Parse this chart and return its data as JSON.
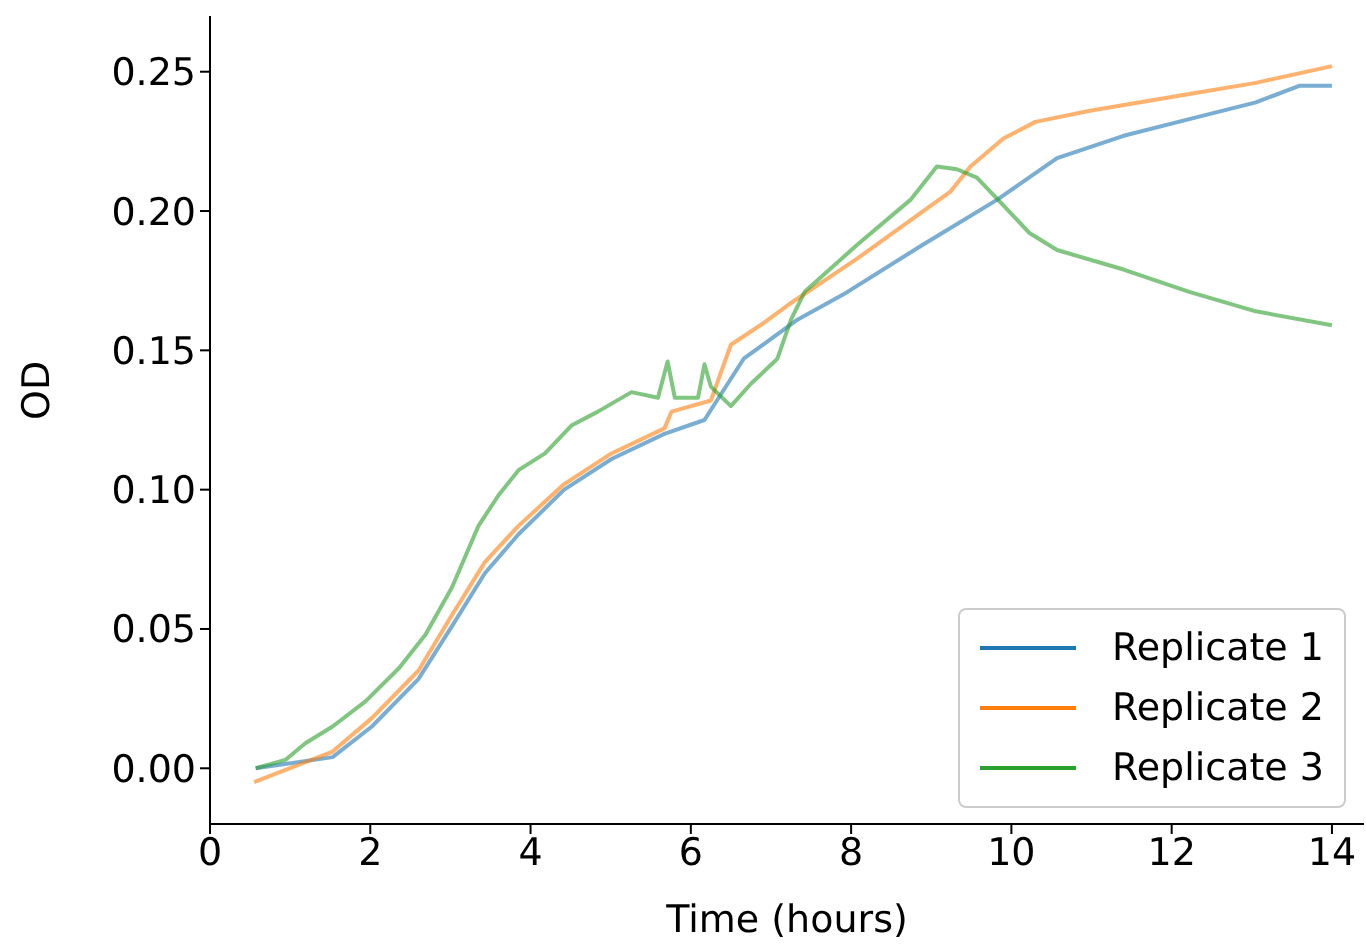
{
  "chart_data": {
    "type": "line",
    "xlabel": "Time (hours)",
    "ylabel": "OD",
    "xlim": [
      0,
      14.4
    ],
    "ylim": [
      -0.02,
      0.27
    ],
    "xticks": [
      0,
      2,
      4,
      6,
      8,
      10,
      12,
      14
    ],
    "yticks": [
      {
        "value": 0,
        "label": "0.00"
      },
      0.05,
      {
        "value": 0.1,
        "label": "0.10"
      },
      0.15,
      {
        "value": 0.2,
        "label": "0.20"
      },
      0.25
    ],
    "grid": false,
    "legend": "bottom right",
    "marker": "none",
    "line_style": "solid",
    "series": [
      {
        "name": "Replicate 1",
        "color": "#1f77b4",
        "x": [
          0.57,
          1.53,
          2.02,
          2.6,
          3.02,
          3.43,
          3.85,
          4.42,
          5.01,
          5.67,
          6.17,
          6.66,
          7.33,
          7.9,
          8.9,
          9.82,
          10.57,
          11.4,
          12.22,
          13.05,
          13.6,
          14.0
        ],
        "values": [
          0.0,
          0.004,
          0.015,
          0.032,
          0.051,
          0.07,
          0.084,
          0.1,
          0.111,
          0.12,
          0.125,
          0.147,
          0.161,
          0.17,
          0.188,
          0.204,
          0.219,
          0.227,
          0.233,
          0.239,
          0.245,
          0.245
        ]
      },
      {
        "name": "Replicate 2",
        "color": "#ff7f0e",
        "x": [
          0.55,
          1.53,
          2.02,
          2.6,
          3.02,
          3.43,
          3.85,
          4.42,
          5.01,
          5.67,
          5.76,
          6.25,
          6.5,
          6.92,
          7.25,
          8.08,
          8.9,
          9.24,
          9.49,
          9.9,
          10.3,
          10.98,
          12.22,
          13.05,
          14.0
        ],
        "values": [
          -0.005,
          0.006,
          0.018,
          0.035,
          0.055,
          0.074,
          0.087,
          0.102,
          0.113,
          0.122,
          0.128,
          0.132,
          0.152,
          0.16,
          0.167,
          0.183,
          0.2,
          0.207,
          0.216,
          0.226,
          0.232,
          0.236,
          0.242,
          0.246,
          0.252
        ]
      },
      {
        "name": "Replicate 3",
        "color": "#2ca02c",
        "x": [
          0.57,
          0.94,
          1.19,
          1.53,
          1.94,
          2.36,
          2.69,
          3.02,
          3.35,
          3.6,
          3.85,
          4.18,
          4.51,
          4.84,
          5.26,
          5.59,
          5.71,
          5.8,
          6.09,
          6.17,
          6.25,
          6.5,
          6.75,
          7.08,
          7.25,
          7.42,
          8.08,
          8.74,
          9.07,
          9.32,
          9.57,
          9.9,
          10.23,
          10.57,
          11.4,
          12.22,
          13.05,
          14.0
        ],
        "values": [
          0.0,
          0.003,
          0.009,
          0.015,
          0.024,
          0.036,
          0.048,
          0.065,
          0.087,
          0.098,
          0.107,
          0.113,
          0.123,
          0.128,
          0.135,
          0.133,
          0.146,
          0.133,
          0.133,
          0.145,
          0.137,
          0.13,
          0.138,
          0.147,
          0.161,
          0.171,
          0.188,
          0.204,
          0.216,
          0.215,
          0.212,
          0.202,
          0.192,
          0.186,
          0.179,
          0.171,
          0.164,
          0.159
        ]
      }
    ]
  }
}
